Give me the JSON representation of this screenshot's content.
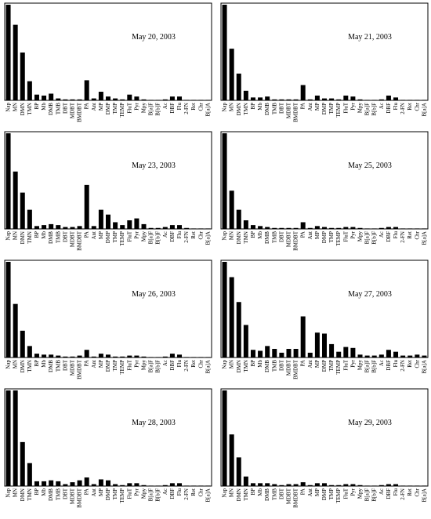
{
  "chart_data": [
    {
      "type": "bar",
      "title": "May 20, 2003",
      "categories": [
        "Nap",
        "MN",
        "DMN",
        "TMN",
        "BP",
        "Mb",
        "DMB",
        "TMB",
        "DBT",
        "MDBT",
        "BMDBT",
        "PA",
        "Ant",
        "MP",
        "DMP",
        "TMP",
        "TEMP",
        "FluT",
        "Pyr",
        "Mpy",
        "B[a]F",
        "B[b]F",
        "Ac",
        "DBF",
        "Flu",
        "2-FN",
        "Ret",
        "Chr",
        "B[a]A"
      ],
      "values": [
        100,
        79,
        50,
        20,
        6,
        5,
        7,
        2,
        1,
        1,
        1,
        21,
        2,
        9,
        4,
        2,
        1,
        6,
        4,
        1,
        0.5,
        0.5,
        1,
        4,
        4,
        0.5,
        0.5,
        0.5,
        0.5
      ],
      "ylim": [
        0,
        100
      ]
    },
    {
      "type": "bar",
      "title": "May 21, 2003",
      "categories": [
        "Nap",
        "MN",
        "DMN",
        "TMN",
        "BP",
        "Mb",
        "DMB",
        "TMB",
        "DBT",
        "MDBT",
        "BMDBT",
        "PA",
        "Ant",
        "MP",
        "DMP",
        "TMP",
        "TEMP",
        "FluT",
        "Pyr",
        "Mpy",
        "B[a]F",
        "B[b]F",
        "Ac",
        "DBF",
        "Flu",
        "2-FN",
        "Ret",
        "Chr",
        "B[a]A"
      ],
      "values": [
        100,
        54,
        28,
        10,
        3,
        3,
        4,
        1,
        1,
        1,
        1,
        16,
        1,
        5,
        2,
        2,
        1,
        5,
        4,
        1,
        0.5,
        0.5,
        1,
        5,
        3,
        0.5,
        0.5,
        0.5,
        0.5
      ],
      "ylim": [
        0,
        100
      ]
    },
    {
      "type": "bar",
      "title": "May 23, 2003",
      "categories": [
        "Nap",
        "MN",
        "DMN",
        "TMN",
        "BP",
        "Mb",
        "DMB",
        "TMB",
        "DBT",
        "MDBT",
        "BMDBT",
        "PA",
        "Ant",
        "MP",
        "DMP",
        "TMP",
        "TEMP",
        "FluT",
        "Pyr",
        "Mpy",
        "B[a]F",
        "B[b]F",
        "Ac",
        "DBF",
        "Flu",
        "2-FN",
        "Ret",
        "Chr",
        "B[a]A"
      ],
      "values": [
        100,
        60,
        38,
        20,
        3,
        4,
        5,
        4,
        2,
        2,
        3,
        46,
        3,
        20,
        15,
        7,
        4,
        9,
        11,
        5,
        1,
        1,
        2,
        4,
        4,
        1,
        0.5,
        0.5,
        0.5
      ],
      "ylim": [
        0,
        100
      ]
    },
    {
      "type": "bar",
      "title": "May 25, 2003",
      "categories": [
        "Nap",
        "MN",
        "DMN",
        "TMN",
        "BP",
        "Mb",
        "DMB",
        "TMB",
        "DBT",
        "MDBT",
        "BMDBT",
        "PA",
        "Ant",
        "MP",
        "DMP",
        "TMP",
        "TEMP",
        "FluT",
        "Pyr",
        "Mpy",
        "B[a]F",
        "B[b]F",
        "Ac",
        "DBF",
        "Flu",
        "2-FN",
        "Ret",
        "Chr",
        "B[a]A"
      ],
      "values": [
        100,
        40,
        20,
        9,
        4,
        3,
        2,
        1,
        1,
        1,
        1,
        7,
        1,
        3,
        2,
        1,
        1,
        2,
        2,
        1,
        0.5,
        0.5,
        1,
        2,
        2,
        0.5,
        0.5,
        0.5,
        0.5
      ],
      "ylim": [
        0,
        100
      ]
    },
    {
      "type": "bar",
      "title": "May 26, 2003",
      "categories": [
        "Nap",
        "MN",
        "DMN",
        "TMN",
        "BP",
        "Mb",
        "DMB",
        "TMB",
        "DBT",
        "MDBT",
        "BMDBT",
        "PA",
        "Ant",
        "MP",
        "DMP",
        "TMP",
        "TEMP",
        "FluT",
        "Pyr",
        "Mpy",
        "B[a]F",
        "B[b]F",
        "Ac",
        "DBF",
        "Flu",
        "2-FN",
        "Ret",
        "Chr",
        "B[a]A"
      ],
      "values": [
        100,
        56,
        28,
        12,
        4,
        3,
        3,
        2,
        1,
        1,
        2,
        8,
        1,
        4,
        3,
        1,
        1,
        2,
        2,
        1,
        0.5,
        0.5,
        1,
        4,
        3,
        0.5,
        0.5,
        0.5,
        0.5
      ],
      "ylim": [
        0,
        100
      ]
    },
    {
      "type": "bar",
      "title": "May 27, 2003",
      "categories": [
        "Nap",
        "MN",
        "DMN",
        "TMN",
        "BP",
        "Mb",
        "DMB",
        "TMB",
        "DBT",
        "MDBT",
        "BMDBT",
        "PA",
        "Ant",
        "MP",
        "DMP",
        "TMP",
        "TEMP",
        "FluT",
        "Pyr",
        "Mpy",
        "B[a]F",
        "B[b]F",
        "Ac",
        "DBF",
        "Flu",
        "2-FN",
        "Ret",
        "Chr",
        "B[a]A"
      ],
      "values": [
        100,
        84,
        58,
        34,
        8,
        7,
        12,
        9,
        5,
        9,
        9,
        43,
        5,
        26,
        25,
        14,
        6,
        11,
        10,
        3,
        2,
        2,
        3,
        8,
        6,
        2,
        2,
        3,
        2
      ],
      "ylim": [
        0,
        100
      ]
    },
    {
      "type": "bar",
      "title": "May 28, 2003",
      "categories": [
        "Nap",
        "MN",
        "DMN",
        "TMN",
        "BP",
        "Mb",
        "DMB",
        "TMB",
        "DBT",
        "MDBT",
        "BMDBT",
        "PA",
        "Ant",
        "MP",
        "DMP",
        "TMP",
        "TEMP",
        "FluT",
        "Pyr",
        "Mpy",
        "B[a]F",
        "B[b]F",
        "Ac",
        "DBF",
        "Flu",
        "2-FN",
        "Ret",
        "Chr",
        "B[a]A"
      ],
      "values": [
        100,
        100,
        46,
        24,
        5,
        5,
        6,
        5,
        2,
        4,
        6,
        9,
        2,
        7,
        6,
        2,
        1,
        3,
        3,
        1,
        0.5,
        0.5,
        1,
        3,
        3,
        0.5,
        0.5,
        0.5,
        0.5
      ],
      "ylim": [
        0,
        100
      ]
    },
    {
      "type": "bar",
      "title": "May 29, 2003",
      "categories": [
        "Nap",
        "MN",
        "DMN",
        "TMN",
        "BP",
        "Mb",
        "DMB",
        "TMB",
        "DBT",
        "MDBT",
        "BMDBT",
        "PA",
        "Ant",
        "MP",
        "DMP",
        "TMP",
        "TEMP",
        "FluT",
        "Pyr",
        "Mpy",
        "B[a]F",
        "B[b]F",
        "Ac",
        "DBF",
        "Flu",
        "2-FN",
        "Ret",
        "Chr",
        "B[a]A"
      ],
      "values": [
        100,
        54,
        30,
        10,
        3,
        3,
        3,
        2,
        1,
        2,
        2,
        4,
        1,
        3,
        3,
        1,
        1,
        2,
        2,
        1,
        0.5,
        0.5,
        1,
        2,
        2,
        0.5,
        0.5,
        0.5,
        0.5
      ],
      "ylim": [
        0,
        100
      ]
    }
  ]
}
